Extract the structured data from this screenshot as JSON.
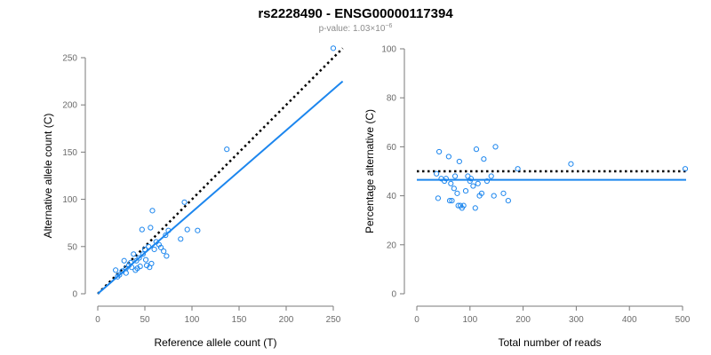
{
  "header": {
    "title": "rs2228490 - ENSG00000117394",
    "pvalue_prefix": "p-value: 1.03×10",
    "pvalue_exponent": "−6"
  },
  "colors": {
    "points": "#1c86ee",
    "fit_line": "#1c86ee",
    "reference_line": "#000000",
    "axis": "#7a7a7a"
  },
  "chart_data": [
    {
      "type": "scatter",
      "name": "allele-count-plot",
      "xlabel": "Reference allele count (T)",
      "ylabel": "Alternative allele count (C)",
      "xlim": [
        0,
        250
      ],
      "ylim": [
        0,
        250
      ],
      "xticks": [
        0,
        50,
        100,
        150,
        200,
        250
      ],
      "yticks": [
        0,
        50,
        100,
        150,
        200,
        250
      ],
      "reference_line": {
        "x": [
          0,
          260
        ],
        "y": [
          0,
          260
        ],
        "style": "dotted"
      },
      "fit_line": {
        "x": [
          0,
          260
        ],
        "y": [
          0,
          225
        ],
        "style": "solid"
      },
      "points": [
        {
          "x": 19,
          "y": 25
        },
        {
          "x": 21,
          "y": 18
        },
        {
          "x": 23,
          "y": 20
        },
        {
          "x": 26,
          "y": 24
        },
        {
          "x": 28,
          "y": 35
        },
        {
          "x": 30,
          "y": 27
        },
        {
          "x": 33,
          "y": 30
        },
        {
          "x": 35,
          "y": 33
        },
        {
          "x": 36,
          "y": 28
        },
        {
          "x": 38,
          "y": 42
        },
        {
          "x": 40,
          "y": 25
        },
        {
          "x": 41,
          "y": 35
        },
        {
          "x": 42,
          "y": 27
        },
        {
          "x": 44,
          "y": 38
        },
        {
          "x": 45,
          "y": 29
        },
        {
          "x": 47,
          "y": 68
        },
        {
          "x": 48,
          "y": 42
        },
        {
          "x": 50,
          "y": 47
        },
        {
          "x": 51,
          "y": 36
        },
        {
          "x": 52,
          "y": 30
        },
        {
          "x": 54,
          "y": 50
        },
        {
          "x": 55,
          "y": 28
        },
        {
          "x": 56,
          "y": 70
        },
        {
          "x": 57,
          "y": 32
        },
        {
          "x": 58,
          "y": 88
        },
        {
          "x": 60,
          "y": 47
        },
        {
          "x": 62,
          "y": 55
        },
        {
          "x": 65,
          "y": 52
        },
        {
          "x": 67,
          "y": 49
        },
        {
          "x": 70,
          "y": 45
        },
        {
          "x": 72,
          "y": 62
        },
        {
          "x": 73,
          "y": 40
        },
        {
          "x": 75,
          "y": 67
        },
        {
          "x": 88,
          "y": 58
        },
        {
          "x": 92,
          "y": 97
        },
        {
          "x": 95,
          "y": 68
        },
        {
          "x": 106,
          "y": 67
        },
        {
          "x": 137,
          "y": 153
        },
        {
          "x": 250,
          "y": 260
        },
        {
          "x": 30,
          "y": 22
        }
      ]
    },
    {
      "type": "scatter",
      "name": "percentage-plot",
      "xlabel": "Total number of reads",
      "ylabel": "Percentage alternative (C)",
      "xlim": [
        0,
        500
      ],
      "ylim": [
        0,
        100
      ],
      "xticks": [
        0,
        100,
        200,
        300,
        400,
        500
      ],
      "yticks": [
        0,
        20,
        40,
        60,
        80,
        100
      ],
      "reference_line": {
        "y": 50,
        "style": "dotted"
      },
      "fit_line": {
        "y": 46.5,
        "style": "solid"
      },
      "points": [
        {
          "x": 37,
          "y": 49
        },
        {
          "x": 40,
          "y": 39
        },
        {
          "x": 42,
          "y": 58
        },
        {
          "x": 46,
          "y": 47
        },
        {
          "x": 52,
          "y": 46
        },
        {
          "x": 55,
          "y": 47
        },
        {
          "x": 60,
          "y": 56
        },
        {
          "x": 62,
          "y": 38
        },
        {
          "x": 64,
          "y": 45
        },
        {
          "x": 66,
          "y": 38
        },
        {
          "x": 70,
          "y": 43
        },
        {
          "x": 72,
          "y": 48
        },
        {
          "x": 76,
          "y": 41
        },
        {
          "x": 78,
          "y": 36
        },
        {
          "x": 80,
          "y": 54
        },
        {
          "x": 82,
          "y": 36
        },
        {
          "x": 85,
          "y": 35
        },
        {
          "x": 88,
          "y": 36
        },
        {
          "x": 92,
          "y": 42
        },
        {
          "x": 96,
          "y": 48
        },
        {
          "x": 100,
          "y": 46
        },
        {
          "x": 102,
          "y": 47
        },
        {
          "x": 106,
          "y": 44
        },
        {
          "x": 110,
          "y": 35
        },
        {
          "x": 112,
          "y": 59
        },
        {
          "x": 115,
          "y": 45
        },
        {
          "x": 118,
          "y": 40
        },
        {
          "x": 122,
          "y": 41
        },
        {
          "x": 126,
          "y": 55
        },
        {
          "x": 132,
          "y": 46
        },
        {
          "x": 140,
          "y": 48
        },
        {
          "x": 145,
          "y": 40
        },
        {
          "x": 148,
          "y": 60
        },
        {
          "x": 163,
          "y": 41
        },
        {
          "x": 172,
          "y": 38
        },
        {
          "x": 190,
          "y": 51
        },
        {
          "x": 290,
          "y": 53
        },
        {
          "x": 505,
          "y": 51
        }
      ]
    }
  ]
}
